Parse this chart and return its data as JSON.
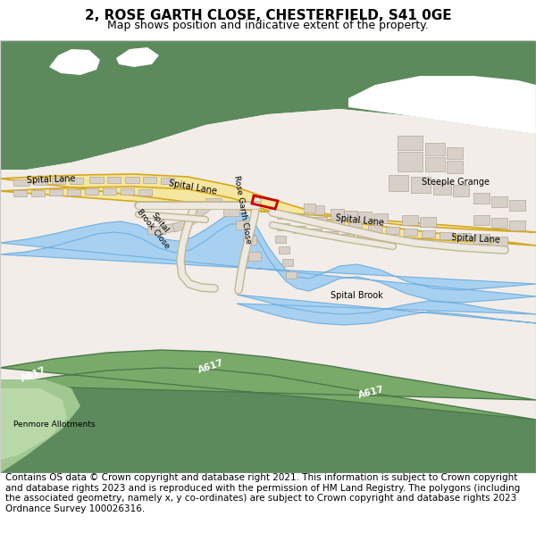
{
  "title": "2, ROSE GARTH CLOSE, CHESTERFIELD, S41 0GE",
  "subtitle": "Map shows position and indicative extent of the property.",
  "footer": "Contains OS data © Crown copyright and database right 2021. This information is subject to Crown copyright and database rights 2023 and is reproduced with the permission of HM Land Registry. The polygons (including the associated geometry, namely x, y co-ordinates) are subject to Crown copyright and database rights 2023 Ordnance Survey 100026316.",
  "title_fontsize": 11,
  "subtitle_fontsize": 9,
  "footer_fontsize": 7.5,
  "bg_color": "#ffffff",
  "map_bg": "#f2ede8",
  "green_color": "#5c8a5c",
  "green_light": "#a0c890",
  "yellow_road": "#f5e6a0",
  "yellow_road_border": "#d4a820",
  "green_road": "#7aaa6a",
  "green_road_border": "#4a7a4a",
  "water_color": "#a8d0f0",
  "building_color": "#d8d0c8",
  "building_border": "#b0a898",
  "red_plot": "#cc0000",
  "map_border": "#cccccc"
}
